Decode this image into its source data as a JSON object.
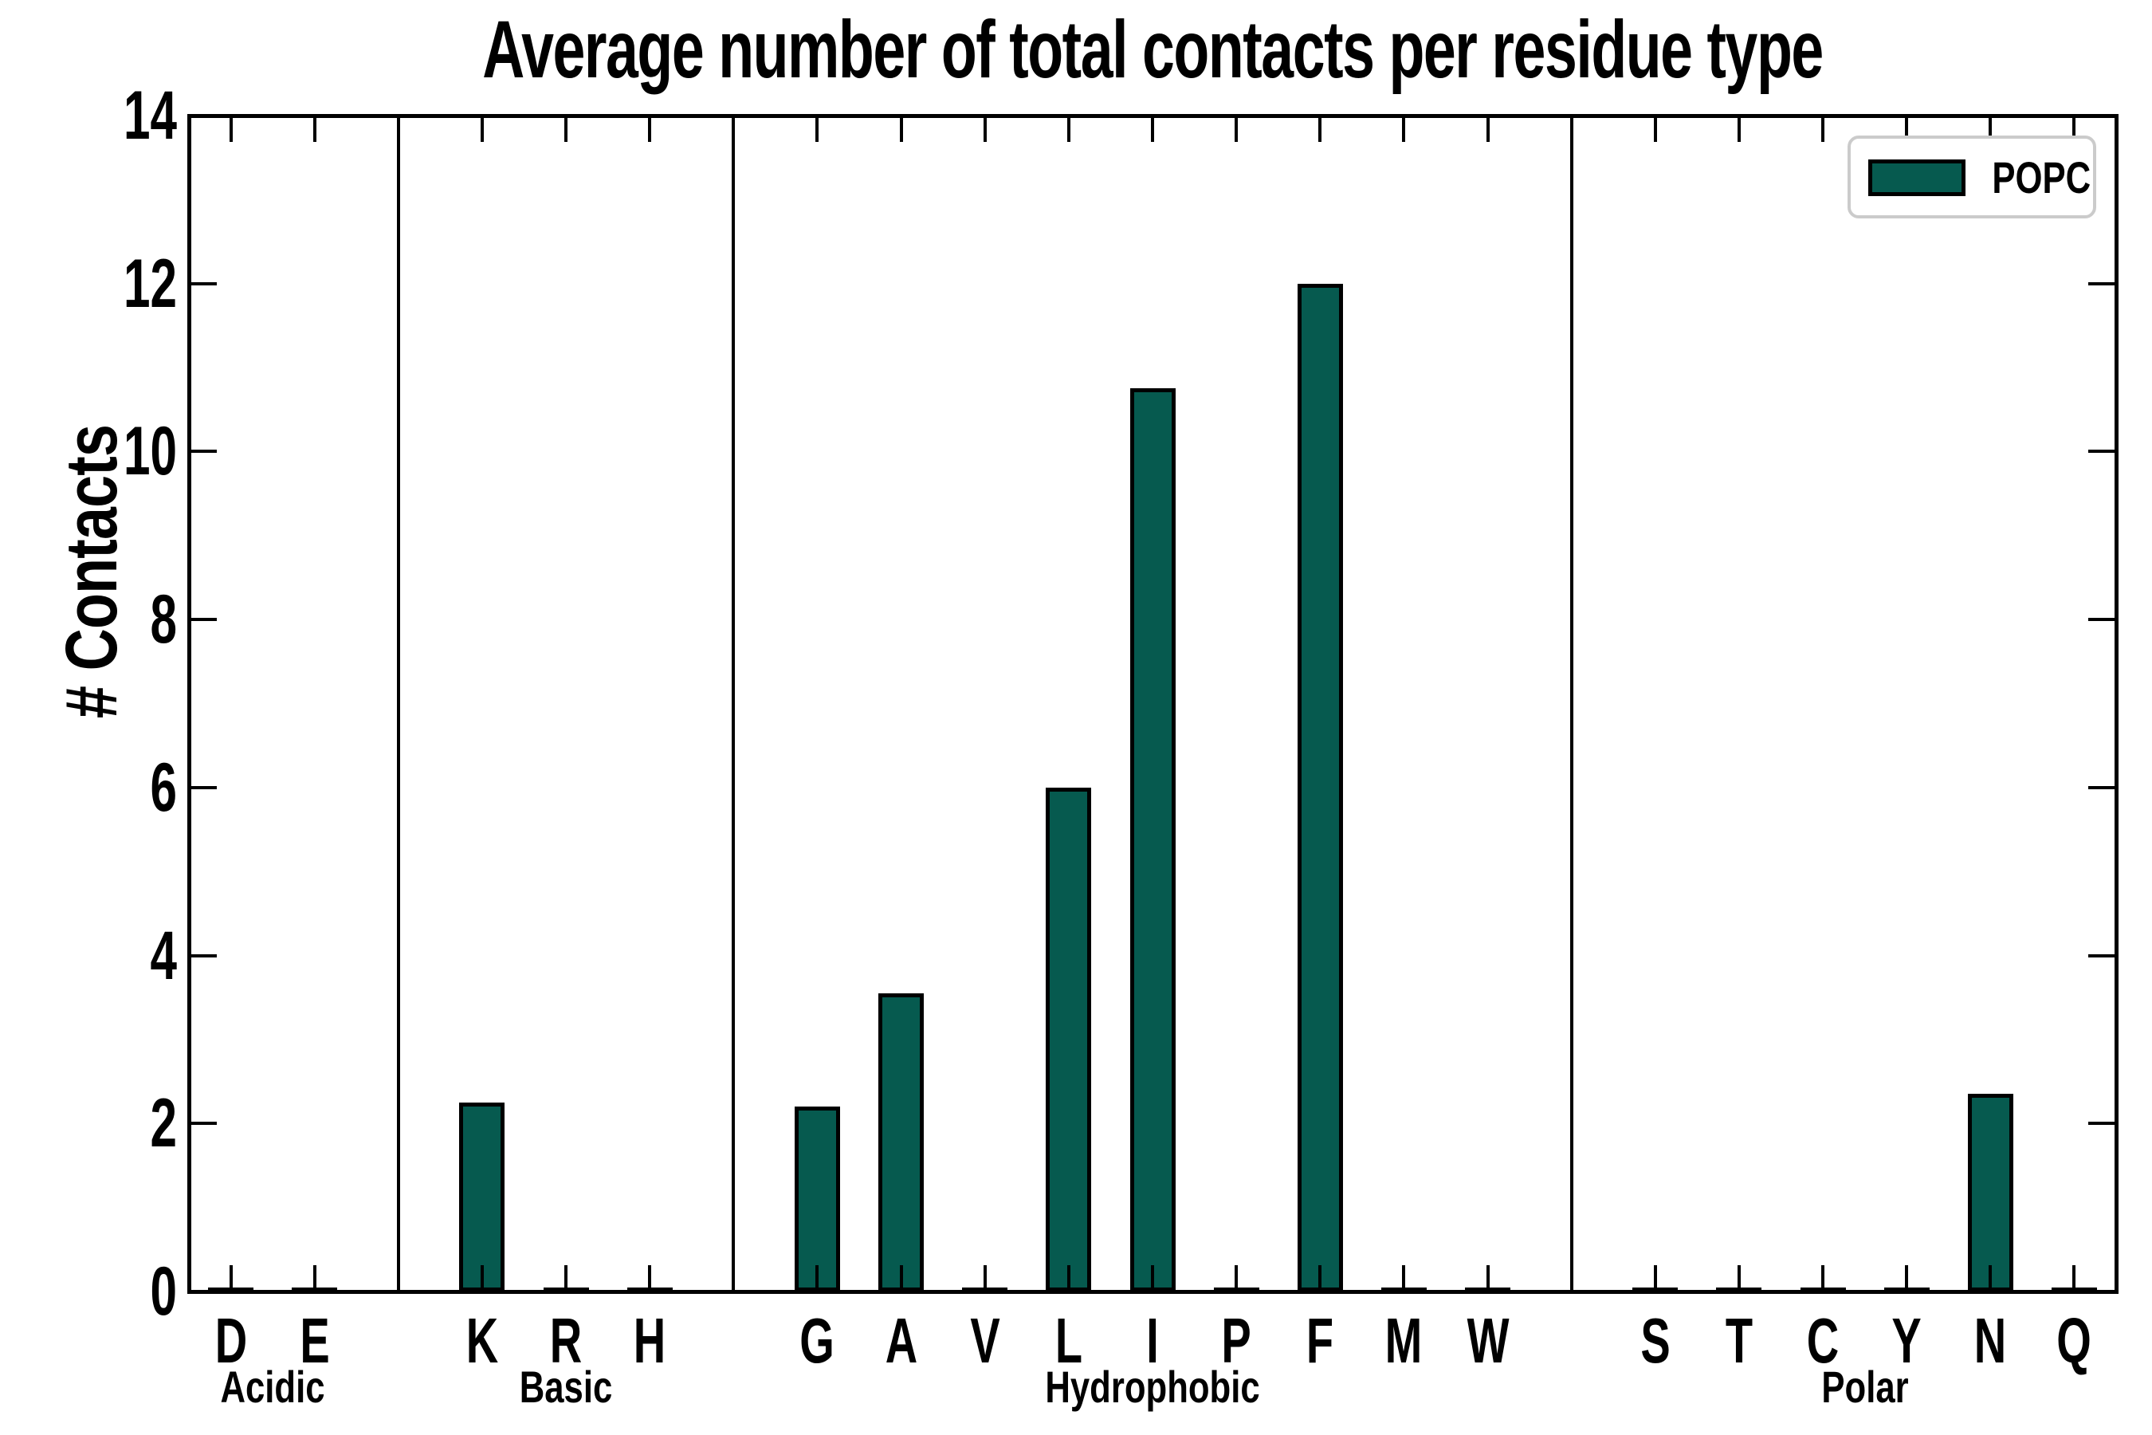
{
  "chart_data": {
    "type": "bar",
    "title": "Average number of total contacts per residue type",
    "xlabel": "",
    "ylabel": "# Contacts",
    "ylim": [
      0,
      14
    ],
    "yticks": [
      0,
      2,
      4,
      6,
      8,
      10,
      12,
      14
    ],
    "grid": false,
    "legend": {
      "label": "POPC",
      "position": "upper right"
    },
    "bar_color": "#065a4f",
    "bar_edge_color": "#000000",
    "axis_color": "#000000",
    "groups": [
      {
        "label": "Acidic",
        "categories": [
          "D",
          "E"
        ],
        "values": [
          0.02,
          0.02
        ]
      },
      {
        "label": "Basic",
        "categories": [
          "K",
          "R",
          "H"
        ],
        "values": [
          2.25,
          0.03,
          0.02
        ]
      },
      {
        "label": "Hydrophobic",
        "categories": [
          "G",
          "A",
          "V",
          "L",
          "I",
          "P",
          "F",
          "M",
          "W"
        ],
        "values": [
          2.2,
          3.55,
          0.03,
          6.0,
          10.75,
          0.03,
          12.0,
          0.02,
          0.03
        ]
      },
      {
        "label": "Polar",
        "categories": [
          "S",
          "T",
          "C",
          "Y",
          "N",
          "Q"
        ],
        "values": [
          0.02,
          0.03,
          0.02,
          0.03,
          2.35,
          0.02
        ]
      }
    ]
  }
}
